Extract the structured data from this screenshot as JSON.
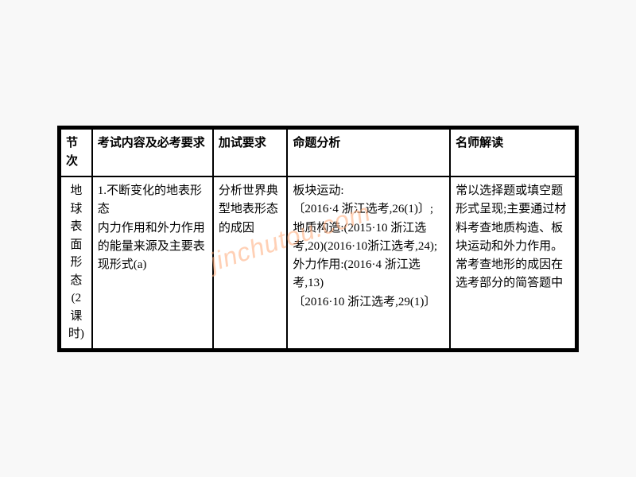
{
  "table": {
    "headers": {
      "h1": "节次",
      "h2": "考试内容及必考要求",
      "h3": "加试要求",
      "h4": "命题分析",
      "h5": "名师解读"
    },
    "row": {
      "c1_lines": [
        "地",
        "球",
        "表",
        "面",
        "形",
        "态",
        "(2",
        "课",
        "时)"
      ],
      "c2": "1.不断变化的地表形态\n内力作用和外力作用的能量来源及主要表现形式(a)",
      "c3": "分析世界典型地表形态的成因",
      "c4": "板块运动:\n〔2016·4 浙江选考,26(1)〕;地质构造:(2015·10 浙江选考,20)(2016·10浙江选考,24);外力作用:(2016·4 浙江选考,13)\n〔2016·10 浙江选考,29(1)〕",
      "c5": "常以选择题或填空题形式呈现;主要通过材料考查地质构造、板块运动和外力作用。常考查地形的成因在选考部分的简答题中"
    }
  },
  "watermark": "jinchutou.com",
  "watermark_color": "rgba(255,170,120,0.55)"
}
